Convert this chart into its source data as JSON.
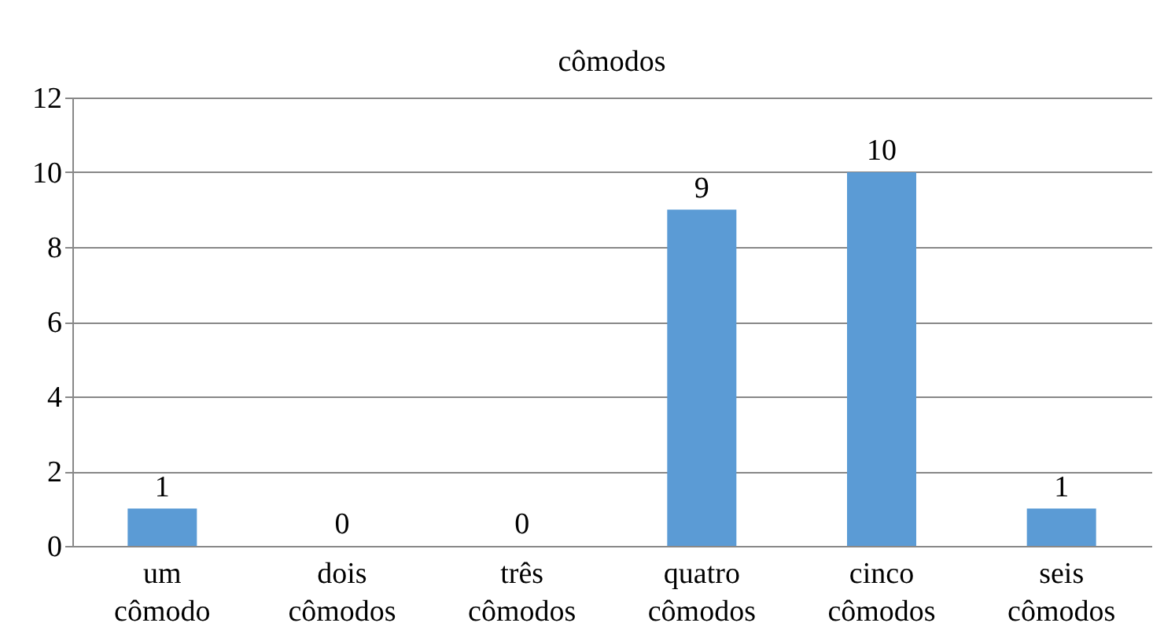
{
  "chart_data": {
    "type": "bar",
    "title": "cômodos",
    "categories": [
      "um cômodo",
      "dois cômodos",
      "três cômodos",
      "quatro cômodos",
      "cinco cômodos",
      "seis cômodos"
    ],
    "values": [
      1,
      0,
      0,
      9,
      10,
      1
    ],
    "color": "#5b9bd5",
    "ylim": [
      0,
      12
    ],
    "yticks": [
      0,
      2,
      4,
      6,
      8,
      10,
      12
    ],
    "grid": "y",
    "data_labels": true
  }
}
